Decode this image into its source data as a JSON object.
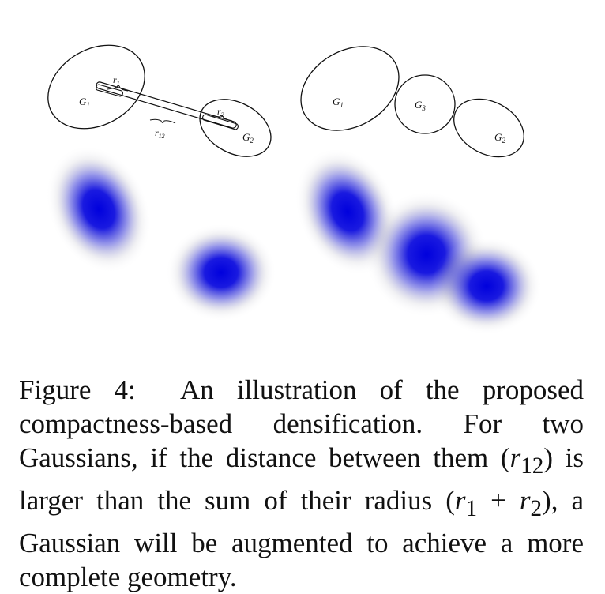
{
  "diagram": {
    "left_panel": {
      "g1_label": "G",
      "g1_sub": "1",
      "g2_label": "G",
      "g2_sub": "2",
      "r1_label": "r",
      "r1_sub": "1",
      "r2_label": "r",
      "r2_sub": "2",
      "r12_label": "r",
      "r12_sub": "12"
    },
    "right_panel": {
      "g1_label": "G",
      "g1_sub": "1",
      "g3_label": "G",
      "g3_sub": "3",
      "g2_label": "G",
      "g2_sub": "2"
    },
    "blob_color": "#0000dd"
  },
  "caption": {
    "figure_label": "Figure 4:",
    "text_part1": "An illustration of the proposed compactness-based densification. For two Gaussians, if the distance between them (",
    "r12_var": "r",
    "r12_sub": "12",
    "text_part2": ") is larger than the sum of their radius (",
    "r1_var": "r",
    "r1_sub": "1",
    "plus": " + ",
    "r2_var": "r",
    "r2_sub": "2",
    "text_part3": "), a Gaussian will be augmented to achieve a more complete geometry."
  }
}
